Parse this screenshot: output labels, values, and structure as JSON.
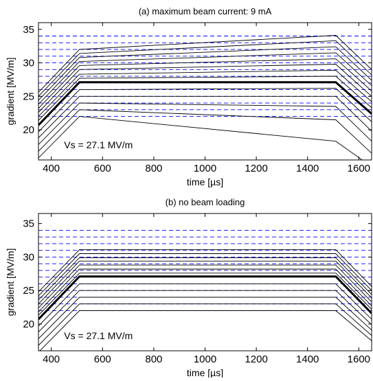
{
  "chart_data": [
    {
      "type": "line",
      "title": "(a) maximum beam current: 9 mA",
      "xlabel": "time [µs]",
      "ylabel": "gradient [MV/m]",
      "xlim": [
        350,
        1650
      ],
      "ylim": [
        15.5,
        36
      ],
      "xticks": [
        400,
        600,
        800,
        1000,
        1200,
        1400,
        1600
      ],
      "yticks": [
        20,
        25,
        30,
        35
      ],
      "grid": false,
      "annotation": "Vs = 27.1 MV/m",
      "dashed_levels": [
        22,
        23,
        24,
        25,
        26,
        27,
        28,
        29,
        30,
        31,
        32,
        33,
        34
      ],
      "dashed_color": "#0000ff",
      "line_color": "#000000",
      "series": [
        {
          "x": [
            350,
            510,
            1510,
            1650
          ],
          "y": [
            15.8,
            22.0,
            18.3,
            14.5
          ],
          "bold": false
        },
        {
          "x": [
            350,
            510,
            1510,
            1650
          ],
          "y": [
            16.8,
            23.0,
            21.5,
            16.5
          ],
          "bold": false
        },
        {
          "x": [
            350,
            510,
            1510,
            1650
          ],
          "y": [
            17.8,
            24.0,
            23.5,
            18.3
          ],
          "bold": false
        },
        {
          "x": [
            350,
            510,
            1510,
            1650
          ],
          "y": [
            18.8,
            25.0,
            25.0,
            19.8
          ],
          "bold": false
        },
        {
          "x": [
            350,
            510,
            1510,
            1650
          ],
          "y": [
            19.7,
            26.0,
            26.2,
            21.2
          ],
          "bold": false
        },
        {
          "x": [
            350,
            510,
            1510,
            1650
          ],
          "y": [
            20.7,
            27.1,
            27.1,
            22.4
          ],
          "bold": true
        },
        {
          "x": [
            350,
            510,
            1510,
            1650
          ],
          "y": [
            21.4,
            27.7,
            28.0,
            23.3
          ],
          "bold": false
        },
        {
          "x": [
            350,
            510,
            1510,
            1650
          ],
          "y": [
            22.0,
            28.3,
            28.9,
            24.2
          ],
          "bold": false
        },
        {
          "x": [
            350,
            510,
            1510,
            1650
          ],
          "y": [
            22.6,
            29.0,
            29.8,
            25.0
          ],
          "bold": false
        },
        {
          "x": [
            350,
            510,
            1510,
            1650
          ],
          "y": [
            23.2,
            29.6,
            30.6,
            25.8
          ],
          "bold": false
        },
        {
          "x": [
            350,
            510,
            1510,
            1650
          ],
          "y": [
            23.8,
            30.2,
            31.5,
            26.6
          ],
          "bold": false
        },
        {
          "x": [
            350,
            510,
            1510,
            1650
          ],
          "y": [
            24.4,
            30.8,
            32.4,
            27.4
          ],
          "bold": false
        },
        {
          "x": [
            350,
            510,
            1510,
            1650
          ],
          "y": [
            25.0,
            31.4,
            33.3,
            28.2
          ],
          "bold": false
        },
        {
          "x": [
            350,
            510,
            1510,
            1650
          ],
          "y": [
            25.6,
            32.0,
            34.1,
            29.0
          ],
          "bold": false
        }
      ]
    },
    {
      "type": "line",
      "title": "(b) no beam loading",
      "xlabel": "time [µs]",
      "ylabel": "gradient [MV/m]",
      "xlim": [
        350,
        1650
      ],
      "ylim": [
        16,
        36.5
      ],
      "xticks": [
        400,
        600,
        800,
        1000,
        1200,
        1400,
        1600
      ],
      "yticks": [
        20,
        25,
        30,
        35
      ],
      "grid": false,
      "annotation": "Vs = 27.1 MV/m",
      "dashed_levels": [
        22,
        23,
        24,
        25,
        26,
        27,
        28,
        29,
        30,
        31,
        32,
        33,
        34
      ],
      "dashed_color": "#0000ff",
      "line_color": "#000000",
      "series": [
        {
          "x": [
            350,
            510,
            1510,
            1650
          ],
          "y": [
            15.8,
            22.0,
            22.0,
            17.5
          ],
          "bold": false
        },
        {
          "x": [
            350,
            510,
            1510,
            1650
          ],
          "y": [
            16.8,
            23.0,
            23.0,
            18.3
          ],
          "bold": false
        },
        {
          "x": [
            350,
            510,
            1510,
            1650
          ],
          "y": [
            17.8,
            24.0,
            24.0,
            19.1
          ],
          "bold": false
        },
        {
          "x": [
            350,
            510,
            1510,
            1650
          ],
          "y": [
            18.8,
            25.0,
            25.0,
            19.9
          ],
          "bold": false
        },
        {
          "x": [
            350,
            510,
            1510,
            1650
          ],
          "y": [
            19.7,
            26.0,
            26.0,
            20.7
          ],
          "bold": false
        },
        {
          "x": [
            350,
            510,
            1510,
            1650
          ],
          "y": [
            20.7,
            27.1,
            27.1,
            21.6
          ],
          "bold": true
        },
        {
          "x": [
            350,
            510,
            1510,
            1650
          ],
          "y": [
            21.3,
            27.6,
            27.6,
            22.2
          ],
          "bold": false
        },
        {
          "x": [
            350,
            510,
            1510,
            1650
          ],
          "y": [
            21.8,
            28.2,
            28.2,
            22.7
          ],
          "bold": false
        },
        {
          "x": [
            350,
            510,
            1510,
            1650
          ],
          "y": [
            22.4,
            28.8,
            28.8,
            23.3
          ],
          "bold": false
        },
        {
          "x": [
            350,
            510,
            1510,
            1650
          ],
          "y": [
            23.0,
            29.4,
            29.4,
            23.9
          ],
          "bold": false
        },
        {
          "x": [
            350,
            510,
            1510,
            1650
          ],
          "y": [
            23.6,
            29.9,
            29.9,
            24.4
          ],
          "bold": false
        },
        {
          "x": [
            350,
            510,
            1510,
            1650
          ],
          "y": [
            24.2,
            30.5,
            30.5,
            25.0
          ],
          "bold": false
        },
        {
          "x": [
            350,
            510,
            1510,
            1650
          ],
          "y": [
            24.8,
            31.1,
            31.1,
            25.6
          ],
          "bold": false
        }
      ]
    }
  ]
}
